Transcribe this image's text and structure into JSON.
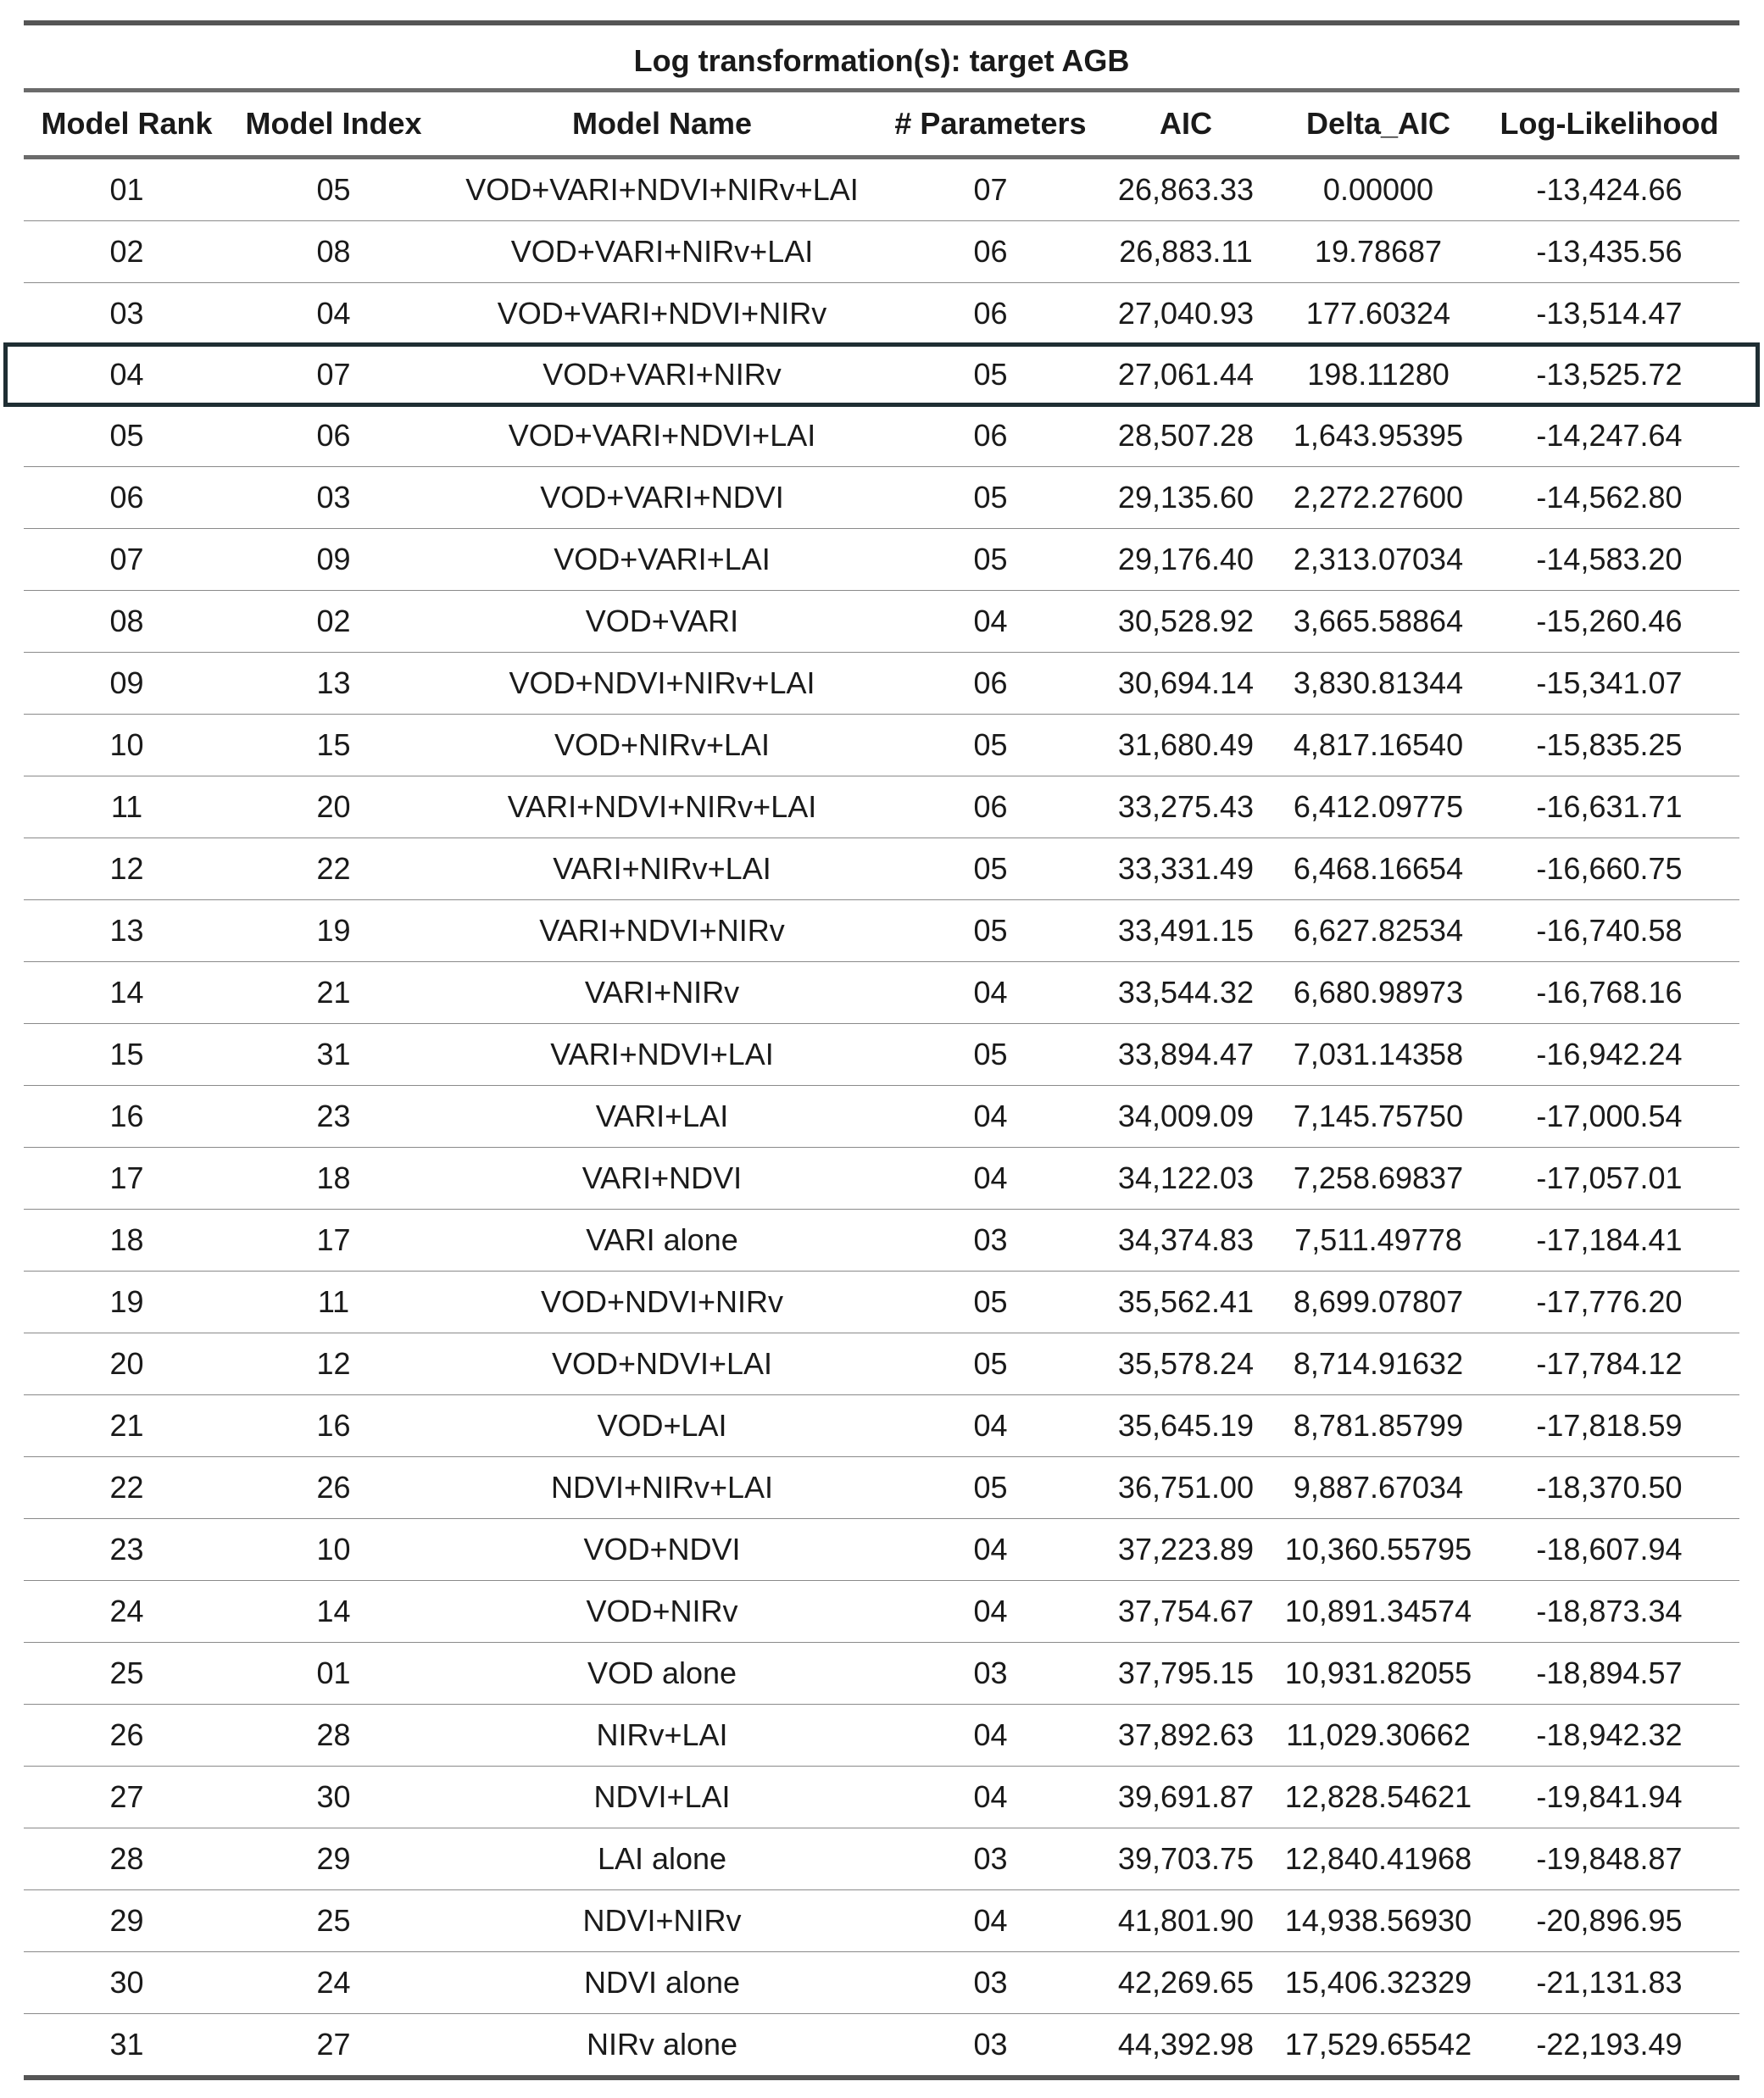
{
  "title": "Log transformation(s): target AGB",
  "columns": [
    "Model Rank",
    "Model Index",
    "Model Name",
    "# Parameters",
    "AIC",
    "Delta_AIC",
    "Log-Likelihood"
  ],
  "highlighted_rank": "04",
  "rows": [
    [
      "01",
      "05",
      "VOD+VARI+NDVI+NIRv+LAI",
      "07",
      "26,863.33",
      "0.00000",
      "-13,424.66"
    ],
    [
      "02",
      "08",
      "VOD+VARI+NIRv+LAI",
      "06",
      "26,883.11",
      "19.78687",
      "-13,435.56"
    ],
    [
      "03",
      "04",
      "VOD+VARI+NDVI+NIRv",
      "06",
      "27,040.93",
      "177.60324",
      "-13,514.47"
    ],
    [
      "04",
      "07",
      "VOD+VARI+NIRv",
      "05",
      "27,061.44",
      "198.11280",
      "-13,525.72"
    ],
    [
      "05",
      "06",
      "VOD+VARI+NDVI+LAI",
      "06",
      "28,507.28",
      "1,643.95395",
      "-14,247.64"
    ],
    [
      "06",
      "03",
      "VOD+VARI+NDVI",
      "05",
      "29,135.60",
      "2,272.27600",
      "-14,562.80"
    ],
    [
      "07",
      "09",
      "VOD+VARI+LAI",
      "05",
      "29,176.40",
      "2,313.07034",
      "-14,583.20"
    ],
    [
      "08",
      "02",
      "VOD+VARI",
      "04",
      "30,528.92",
      "3,665.58864",
      "-15,260.46"
    ],
    [
      "09",
      "13",
      "VOD+NDVI+NIRv+LAI",
      "06",
      "30,694.14",
      "3,830.81344",
      "-15,341.07"
    ],
    [
      "10",
      "15",
      "VOD+NIRv+LAI",
      "05",
      "31,680.49",
      "4,817.16540",
      "-15,835.25"
    ],
    [
      "11",
      "20",
      "VARI+NDVI+NIRv+LAI",
      "06",
      "33,275.43",
      "6,412.09775",
      "-16,631.71"
    ],
    [
      "12",
      "22",
      "VARI+NIRv+LAI",
      "05",
      "33,331.49",
      "6,468.16654",
      "-16,660.75"
    ],
    [
      "13",
      "19",
      "VARI+NDVI+NIRv",
      "05",
      "33,491.15",
      "6,627.82534",
      "-16,740.58"
    ],
    [
      "14",
      "21",
      "VARI+NIRv",
      "04",
      "33,544.32",
      "6,680.98973",
      "-16,768.16"
    ],
    [
      "15",
      "31",
      "VARI+NDVI+LAI",
      "05",
      "33,894.47",
      "7,031.14358",
      "-16,942.24"
    ],
    [
      "16",
      "23",
      "VARI+LAI",
      "04",
      "34,009.09",
      "7,145.75750",
      "-17,000.54"
    ],
    [
      "17",
      "18",
      "VARI+NDVI",
      "04",
      "34,122.03",
      "7,258.69837",
      "-17,057.01"
    ],
    [
      "18",
      "17",
      "VARI alone",
      "03",
      "34,374.83",
      "7,511.49778",
      "-17,184.41"
    ],
    [
      "19",
      "11",
      "VOD+NDVI+NIRv",
      "05",
      "35,562.41",
      "8,699.07807",
      "-17,776.20"
    ],
    [
      "20",
      "12",
      "VOD+NDVI+LAI",
      "05",
      "35,578.24",
      "8,714.91632",
      "-17,784.12"
    ],
    [
      "21",
      "16",
      "VOD+LAI",
      "04",
      "35,645.19",
      "8,781.85799",
      "-17,818.59"
    ],
    [
      "22",
      "26",
      "NDVI+NIRv+LAI",
      "05",
      "36,751.00",
      "9,887.67034",
      "-18,370.50"
    ],
    [
      "23",
      "10",
      "VOD+NDVI",
      "04",
      "37,223.89",
      "10,360.55795",
      "-18,607.94"
    ],
    [
      "24",
      "14",
      "VOD+NIRv",
      "04",
      "37,754.67",
      "10,891.34574",
      "-18,873.34"
    ],
    [
      "25",
      "01",
      "VOD alone",
      "03",
      "37,795.15",
      "10,931.82055",
      "-18,894.57"
    ],
    [
      "26",
      "28",
      "NIRv+LAI",
      "04",
      "37,892.63",
      "11,029.30662",
      "-18,942.32"
    ],
    [
      "27",
      "30",
      "NDVI+LAI",
      "04",
      "39,691.87",
      "12,828.54621",
      "-19,841.94"
    ],
    [
      "28",
      "29",
      "LAI alone",
      "03",
      "39,703.75",
      "12,840.41968",
      "-19,848.87"
    ],
    [
      "29",
      "25",
      "NDVI+NIRv",
      "04",
      "41,801.90",
      "14,938.56930",
      "-20,896.95"
    ],
    [
      "30",
      "24",
      "NDVI alone",
      "03",
      "42,269.65",
      "15,406.32329",
      "-21,131.83"
    ],
    [
      "31",
      "27",
      "NIRv alone",
      "03",
      "44,392.98",
      "17,529.65542",
      "-22,193.49"
    ]
  ]
}
